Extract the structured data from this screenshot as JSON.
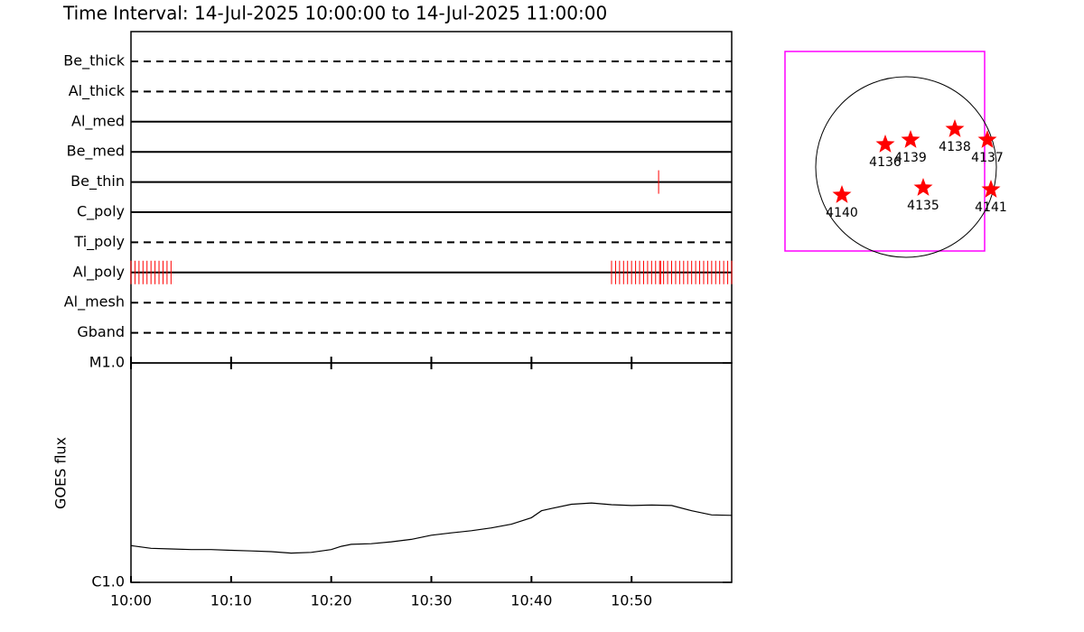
{
  "title": "Time Interval: 14-Jul-2025 10:00:00 to 14-Jul-2025 11:00:00",
  "chart_data": [
    {
      "type": "timeline",
      "categories": [
        "Be_thick",
        "Al_thick",
        "Al_med",
        "Be_med",
        "Be_thin",
        "C_poly",
        "Ti_poly",
        "Al_poly",
        "Al_mesh",
        "Gband"
      ],
      "line_styles": [
        "dashed",
        "dashed",
        "solid",
        "solid",
        "solid",
        "solid",
        "dashed",
        "solid",
        "dashed",
        "dashed"
      ],
      "color": "#ff0000",
      "observations": [
        [],
        [],
        [],
        [],
        [
          52.7
        ],
        [],
        [],
        [
          0,
          0.4,
          0.8,
          1.2,
          1.6,
          2.0,
          2.4,
          2.8,
          3.2,
          3.6,
          4.0,
          48.0,
          48.4,
          48.8,
          49.2,
          49.6,
          50.0,
          50.4,
          50.8,
          51.2,
          51.6,
          52.0,
          52.4,
          52.8,
          52.9,
          53.2,
          53.6,
          54.0,
          54.4,
          54.8,
          55.2,
          55.6,
          56.0,
          56.4,
          56.8,
          57.2,
          57.6,
          58.0,
          58.4,
          58.8,
          59.2,
          59.6,
          60.0
        ],
        [],
        []
      ],
      "xlim": [
        0,
        60
      ],
      "xticks": [
        0,
        10,
        20,
        30,
        40,
        50
      ]
    },
    {
      "type": "line",
      "ylabel": "GOES flux",
      "log_y": true,
      "color": "#000000",
      "x": [
        0,
        2,
        4,
        6,
        8,
        10,
        12,
        14,
        16,
        18,
        20,
        21,
        22,
        24,
        26,
        28,
        30,
        32,
        34,
        36,
        38,
        40,
        41,
        42,
        44,
        46,
        48,
        50,
        52,
        54,
        56,
        58,
        60
      ],
      "values": [
        1.47e-06,
        1.43e-06,
        1.42e-06,
        1.41e-06,
        1.41e-06,
        1.4e-06,
        1.39e-06,
        1.38e-06,
        1.36e-06,
        1.37e-06,
        1.41e-06,
        1.46e-06,
        1.49e-06,
        1.5e-06,
        1.53e-06,
        1.57e-06,
        1.64e-06,
        1.68e-06,
        1.72e-06,
        1.77e-06,
        1.84e-06,
        1.97e-06,
        2.12e-06,
        2.17e-06,
        2.27e-06,
        2.3e-06,
        2.26e-06,
        2.24e-06,
        2.25e-06,
        2.24e-06,
        2.12e-06,
        2.03e-06,
        2.02e-06
      ],
      "xlim": [
        0,
        60
      ],
      "xticks": [
        {
          "value": 0,
          "label": "10:00"
        },
        {
          "value": 10,
          "label": "10:10"
        },
        {
          "value": 20,
          "label": "10:20"
        },
        {
          "value": 30,
          "label": "10:30"
        },
        {
          "value": 40,
          "label": "10:40"
        },
        {
          "value": 50,
          "label": "10:50"
        }
      ],
      "ylim": [
        1e-06,
        1e-05
      ],
      "yticks": [
        {
          "value": 1e-06,
          "label": "C1.0"
        },
        {
          "value": 1e-05,
          "label": "M1.0"
        }
      ]
    },
    {
      "type": "map",
      "disk_radius": 1,
      "fov": {
        "x": [
          -1.34,
          0.87
        ],
        "y": [
          -0.93,
          1.28
        ]
      },
      "fov_color": "#ff00ff",
      "marker_color": "#ff0000",
      "regions": [
        {
          "name": "4136",
          "x": -0.23,
          "y": 0.25
        },
        {
          "name": "4139",
          "x": 0.05,
          "y": 0.3
        },
        {
          "name": "4138",
          "x": 0.54,
          "y": 0.42
        },
        {
          "name": "4137",
          "x": 0.9,
          "y": 0.3
        },
        {
          "name": "4140",
          "x": -0.71,
          "y": -0.31
        },
        {
          "name": "4135",
          "x": 0.19,
          "y": -0.23
        },
        {
          "name": "4141",
          "x": 0.94,
          "y": -0.25
        }
      ]
    }
  ]
}
